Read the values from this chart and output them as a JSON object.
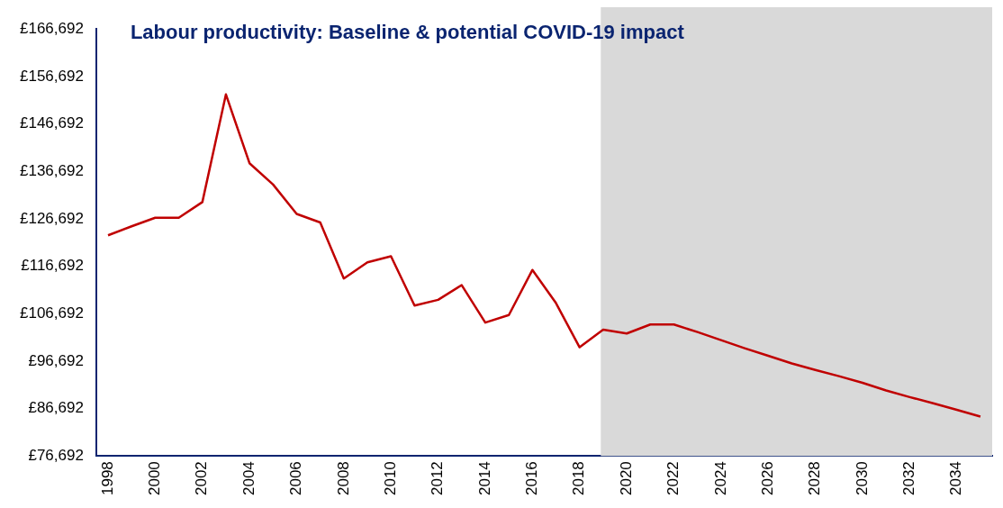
{
  "chart_data": {
    "type": "line",
    "title": "Labour productivity: Baseline & potential COVID-19 impact",
    "x": [
      1998,
      1999,
      2000,
      2001,
      2002,
      2003,
      2004,
      2005,
      2006,
      2007,
      2008,
      2009,
      2010,
      2011,
      2012,
      2013,
      2014,
      2015,
      2016,
      2017,
      2018,
      2019,
      2020,
      2021,
      2022,
      2023,
      2024,
      2025,
      2026,
      2027,
      2028,
      2029,
      2030,
      2031,
      2032,
      2033,
      2034,
      2035
    ],
    "series": [
      {
        "color": "#c00000",
        "values": [
          123200,
          125100,
          126900,
          126900,
          130200,
          152900,
          138400,
          133900,
          127700,
          125900,
          114100,
          117500,
          118800,
          108400,
          109600,
          112700,
          104800,
          106400,
          115900,
          108900,
          99600,
          103300,
          102500,
          104400,
          104400,
          102800,
          101100,
          99400,
          97800,
          96200,
          94800,
          93500,
          92100,
          90500,
          89100,
          87800,
          86400,
          85000
        ]
      }
    ],
    "xlim": [
      1997.5,
      2035.5
    ],
    "xticks": [
      1998,
      2000,
      2002,
      2004,
      2006,
      2008,
      2010,
      2012,
      2014,
      2016,
      2018,
      2020,
      2022,
      2024,
      2026,
      2028,
      2030,
      2032,
      2034
    ],
    "ylim": [
      76692,
      166692
    ],
    "yticks": [
      {
        "value": 76692,
        "label": "£76,692"
      },
      {
        "value": 86692,
        "label": "£86,692"
      },
      {
        "value": 96692,
        "label": "£96,692"
      },
      {
        "value": 106692,
        "label": "£106,692"
      },
      {
        "value": 116692,
        "label": "£116,692"
      },
      {
        "value": 126692,
        "label": "£126,692"
      },
      {
        "value": 136692,
        "label": "£136,692"
      },
      {
        "value": 146692,
        "label": "£146,692"
      },
      {
        "value": 156692,
        "label": "£156,692"
      },
      {
        "value": 166692,
        "label": "£166,692"
      }
    ],
    "bands": [
      {
        "axis": "x",
        "from": 2018.9,
        "to": 2035.5,
        "color": "#d9d9d9"
      }
    ],
    "grid": false,
    "legend": false,
    "marker": "none",
    "line_style": "solid"
  }
}
